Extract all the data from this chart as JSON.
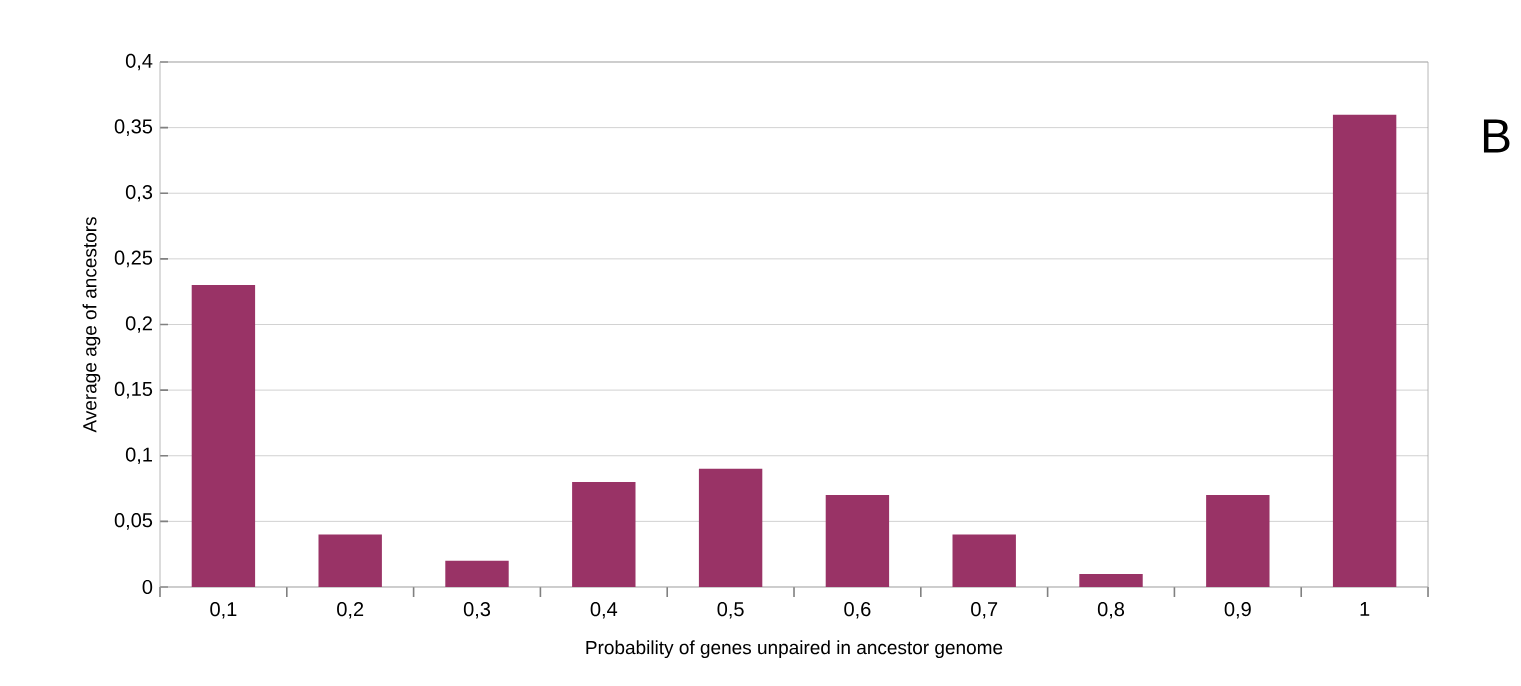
{
  "chart_data": {
    "type": "bar",
    "xlabel": "Probability of genes unpaired in ancestor genome",
    "ylabel": "Average age of ancestors",
    "categories": [
      "0,1",
      "0,2",
      "0,3",
      "0,4",
      "0,5",
      "0,6",
      "0,7",
      "0,8",
      "0,9",
      "1"
    ],
    "values": [
      0.23,
      0.04,
      0.02,
      0.08,
      0.09,
      0.07,
      0.04,
      0.01,
      0.07,
      0.36
    ],
    "color": "#993366",
    "ylim": [
      0,
      0.4
    ],
    "yticks": [
      0,
      {
        "value": 0.05,
        "label": "0,05"
      },
      {
        "value": 0.1,
        "label": "0,1"
      },
      {
        "value": 0.15,
        "label": "0,15"
      },
      {
        "value": 0.2,
        "label": "0,2"
      },
      {
        "value": 0.25,
        "label": "0,25"
      },
      {
        "value": 0.3,
        "label": "0,3"
      },
      {
        "value": 0.35,
        "label": "0,35"
      },
      {
        "value": 0.4,
        "label": "0,4"
      }
    ],
    "grid": "y",
    "annotations": [
      "B"
    ]
  }
}
